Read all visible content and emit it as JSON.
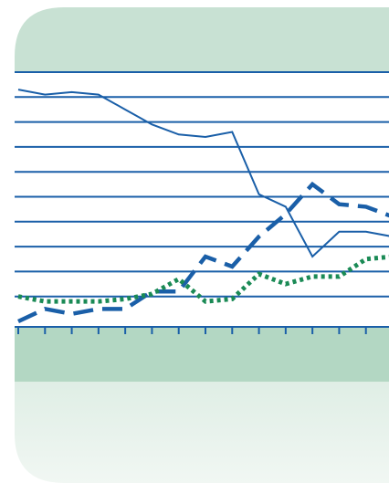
{
  "chart_data": {
    "type": "line",
    "title": "",
    "xlabel": "",
    "ylabel": "",
    "x": [
      0,
      1,
      2,
      3,
      4,
      5,
      6,
      7,
      8,
      9,
      10,
      11,
      12,
      13,
      14
    ],
    "xlim": [
      0,
      14
    ],
    "ylim": [
      0,
      10
    ],
    "grid": true,
    "legend": "none",
    "series": [
      {
        "style": "solid",
        "color": "#1a5fa8",
        "values": [
          9.3,
          9.1,
          9.2,
          9.1,
          8.5,
          7.9,
          7.5,
          7.4,
          7.6,
          5.1,
          4.6,
          2.6,
          3.6,
          3.6,
          3.4
        ]
      },
      {
        "style": "dashed",
        "color": "#1a5fa8",
        "values": [
          0.0,
          0.5,
          0.3,
          0.5,
          0.5,
          1.2,
          1.2,
          2.6,
          2.2,
          3.4,
          4.3,
          5.5,
          4.7,
          4.6,
          4.2
        ]
      },
      {
        "style": "dotted",
        "color": "#1a8a55",
        "values": [
          1.0,
          0.8,
          0.8,
          0.8,
          0.9,
          1.1,
          1.7,
          0.8,
          0.9,
          1.9,
          1.5,
          1.8,
          1.8,
          2.5,
          2.6
        ]
      }
    ]
  }
}
